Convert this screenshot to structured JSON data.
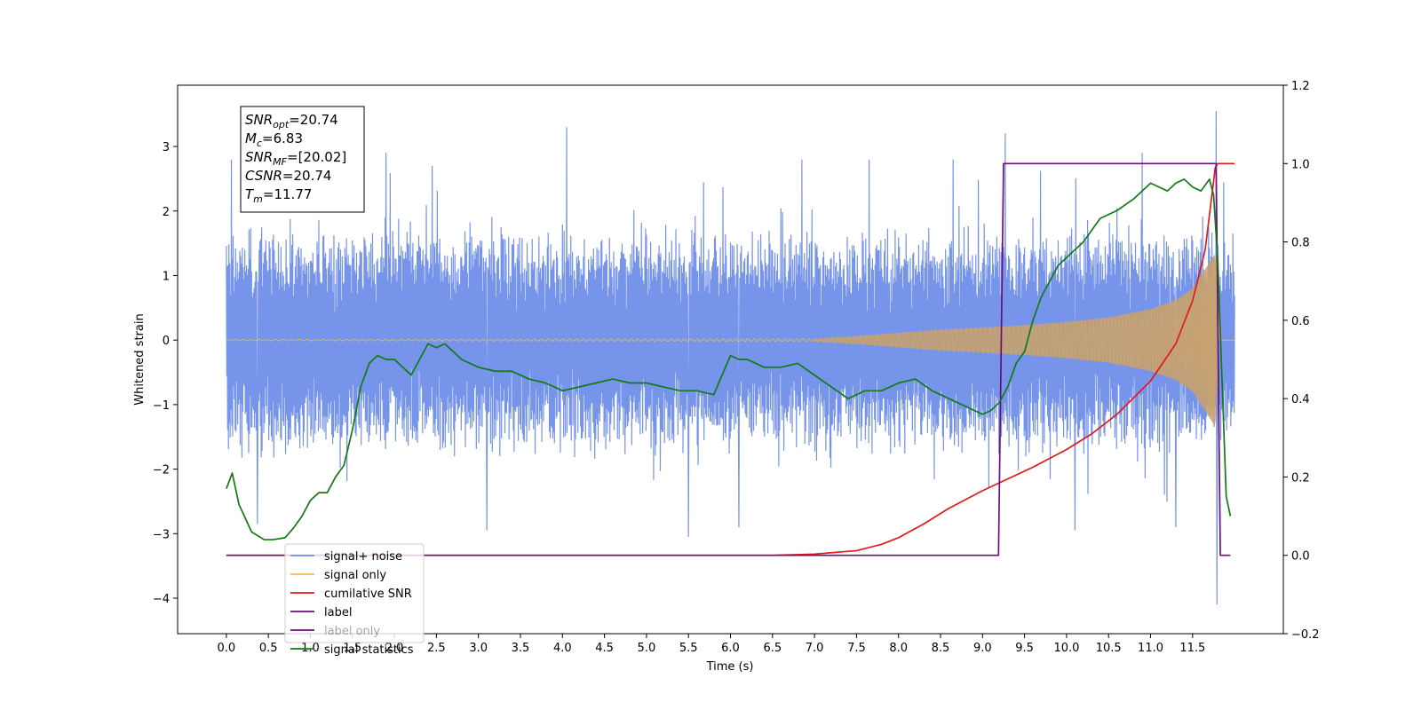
{
  "chart_data": {
    "type": "line",
    "xlabel": "Time (s)",
    "ylabel": "Whitened strain",
    "xlim": [
      -0.58,
      12.58
    ],
    "ylim": [
      -4.55,
      3.95
    ],
    "ylim_right": [
      -0.2,
      1.2
    ],
    "x_ticks": [
      0.0,
      0.5,
      1.0,
      1.5,
      2.0,
      2.5,
      3.0,
      3.5,
      4.0,
      4.5,
      5.0,
      5.5,
      6.0,
      6.5,
      7.0,
      7.5,
      8.0,
      8.5,
      9.0,
      9.5,
      10.0,
      10.5,
      11.0,
      11.5
    ],
    "x_tick_labels": [
      "0.0",
      "0.5",
      "1.0",
      "1.5",
      "2.0",
      "2.5",
      "3.0",
      "3.5",
      "4.0",
      "4.5",
      "5.0",
      "5.5",
      "6.0",
      "6.5",
      "7.0",
      "7.5",
      "8.0",
      "8.5",
      "9.0",
      "9.5",
      "10.0",
      "10.5",
      "11.0",
      "11.5"
    ],
    "y_ticks": [
      -4,
      -3,
      -2,
      -1,
      0,
      1,
      2,
      3
    ],
    "y_tick_labels": [
      "−4",
      "−3",
      "−2",
      "−1",
      "0",
      "1",
      "2",
      "3"
    ],
    "y_right_ticks": [
      -0.2,
      0.0,
      0.2,
      0.4,
      0.6,
      0.8,
      1.0,
      1.2
    ],
    "y_right_tick_labels": [
      "−0.2",
      "0.0",
      "0.2",
      "0.4",
      "0.6",
      "0.8",
      "1.0",
      "1.2"
    ],
    "grid": false,
    "legend_position": "lower-left",
    "info_box": {
      "position": "top-left",
      "lines": [
        {
          "main": "SNR",
          "sub": "opt",
          "rest": "=20.74"
        },
        {
          "main": "M",
          "sub": "c",
          "rest": "=6.83"
        },
        {
          "main": "SNR",
          "sub": "MF",
          "rest": "=[20.02]"
        },
        {
          "main": "CSNR",
          "sub": "",
          "rest": "=20.74"
        },
        {
          "main": "T",
          "sub": "m",
          "rest": "=11.77"
        }
      ]
    },
    "series": [
      {
        "name": "signal+ noise",
        "axis": "left",
        "color": "#6f8ee8",
        "style": "noise-envelope",
        "x_start": 0.0,
        "x_end": 12.0,
        "typical_amplitude": 1.4,
        "peak_values": [
          {
            "x": 0.06,
            "y": 2.8
          },
          {
            "x": 1.9,
            "y": 2.9
          },
          {
            "x": 2.45,
            "y": 2.7
          },
          {
            "x": 4.05,
            "y": 3.3
          },
          {
            "x": 6.85,
            "y": 2.8
          },
          {
            "x": 7.65,
            "y": 2.8
          },
          {
            "x": 8.65,
            "y": 2.8
          },
          {
            "x": 9.27,
            "y": 3.2
          },
          {
            "x": 10.9,
            "y": 2.9
          },
          {
            "x": 11.78,
            "y": 3.55
          },
          {
            "x": 11.79,
            "y": -4.1
          },
          {
            "x": 3.1,
            "y": -2.95
          },
          {
            "x": 5.5,
            "y": -3.05
          },
          {
            "x": 0.37,
            "y": -2.85
          },
          {
            "x": 6.1,
            "y": -2.9
          },
          {
            "x": 10.1,
            "y": -2.95
          },
          {
            "x": 11.3,
            "y": -2.9
          }
        ]
      },
      {
        "name": "signal only",
        "axis": "left",
        "color": "#f5b85a",
        "style": "chirp",
        "x_start": 0.0,
        "x_end": 12.0,
        "merger_time": 11.77,
        "envelope": [
          {
            "x": 0.0,
            "y": 0.01
          },
          {
            "x": 7.0,
            "y": 0.02
          },
          {
            "x": 7.5,
            "y": 0.06
          },
          {
            "x": 8.0,
            "y": 0.11
          },
          {
            "x": 8.5,
            "y": 0.16
          },
          {
            "x": 9.0,
            "y": 0.19
          },
          {
            "x": 9.5,
            "y": 0.23
          },
          {
            "x": 10.0,
            "y": 0.28
          },
          {
            "x": 10.5,
            "y": 0.35
          },
          {
            "x": 11.0,
            "y": 0.48
          },
          {
            "x": 11.3,
            "y": 0.62
          },
          {
            "x": 11.5,
            "y": 0.8
          },
          {
            "x": 11.65,
            "y": 1.1
          },
          {
            "x": 11.75,
            "y": 1.3
          },
          {
            "x": 11.77,
            "y": 1.35
          },
          {
            "x": 11.82,
            "y": 0.0
          },
          {
            "x": 12.0,
            "y": 0.0
          }
        ]
      },
      {
        "name": "cumilative SNR",
        "axis": "right",
        "color": "#e31a1c",
        "style": "line",
        "x": [
          0.0,
          6.5,
          7.0,
          7.5,
          7.8,
          8.0,
          8.3,
          8.6,
          9.0,
          9.3,
          9.6,
          10.0,
          10.3,
          10.6,
          11.0,
          11.3,
          11.5,
          11.65,
          11.77,
          11.8,
          12.0
        ],
        "y": [
          0.0,
          0.0,
          0.003,
          0.012,
          0.028,
          0.045,
          0.08,
          0.12,
          0.165,
          0.195,
          0.225,
          0.27,
          0.31,
          0.36,
          0.445,
          0.54,
          0.65,
          0.78,
          0.99,
          1.0,
          1.0
        ]
      },
      {
        "name": "label",
        "axis": "right",
        "color": "#6b0f7a",
        "style": "line",
        "x": [
          0.0,
          9.19,
          9.25,
          11.78,
          11.83,
          11.95
        ],
        "y": [
          0.0,
          0.0,
          1.0,
          1.0,
          0.0,
          0.0
        ]
      },
      {
        "name": "label only",
        "axis": "right",
        "color": "#6b0f7a",
        "style": "hidden-legend-only",
        "x": [],
        "y": []
      },
      {
        "name": "signal statistics",
        "axis": "right",
        "color": "#137a13",
        "style": "line",
        "x": [
          0.0,
          0.07,
          0.15,
          0.3,
          0.45,
          0.55,
          0.7,
          0.8,
          0.9,
          1.0,
          1.1,
          1.2,
          1.3,
          1.4,
          1.5,
          1.6,
          1.7,
          1.8,
          1.9,
          2.0,
          2.1,
          2.2,
          2.3,
          2.4,
          2.5,
          2.6,
          2.7,
          2.8,
          2.9,
          3.0,
          3.2,
          3.4,
          3.6,
          3.8,
          4.0,
          4.2,
          4.4,
          4.6,
          4.8,
          5.0,
          5.2,
          5.4,
          5.6,
          5.8,
          6.0,
          6.1,
          6.2,
          6.4,
          6.6,
          6.8,
          7.0,
          7.2,
          7.4,
          7.6,
          7.8,
          8.0,
          8.2,
          8.4,
          8.6,
          8.8,
          9.0,
          9.1,
          9.2,
          9.3,
          9.4,
          9.5,
          9.6,
          9.7,
          9.8,
          9.9,
          10.0,
          10.2,
          10.4,
          10.6,
          10.8,
          11.0,
          11.1,
          11.2,
          11.3,
          11.4,
          11.5,
          11.6,
          11.7,
          11.75,
          11.8,
          11.9,
          11.95
        ],
        "y": [
          0.17,
          0.21,
          0.13,
          0.06,
          0.04,
          0.04,
          0.045,
          0.07,
          0.1,
          0.14,
          0.16,
          0.16,
          0.2,
          0.23,
          0.32,
          0.43,
          0.49,
          0.51,
          0.5,
          0.5,
          0.48,
          0.46,
          0.5,
          0.54,
          0.53,
          0.54,
          0.52,
          0.5,
          0.49,
          0.48,
          0.47,
          0.47,
          0.45,
          0.44,
          0.42,
          0.43,
          0.44,
          0.45,
          0.44,
          0.44,
          0.43,
          0.42,
          0.42,
          0.41,
          0.51,
          0.5,
          0.5,
          0.48,
          0.48,
          0.49,
          0.46,
          0.43,
          0.4,
          0.42,
          0.42,
          0.44,
          0.45,
          0.42,
          0.4,
          0.38,
          0.36,
          0.37,
          0.39,
          0.43,
          0.49,
          0.52,
          0.6,
          0.66,
          0.7,
          0.74,
          0.76,
          0.8,
          0.86,
          0.88,
          0.91,
          0.95,
          0.94,
          0.93,
          0.95,
          0.96,
          0.94,
          0.93,
          0.96,
          0.92,
          0.75,
          0.15,
          0.1
        ]
      }
    ]
  }
}
